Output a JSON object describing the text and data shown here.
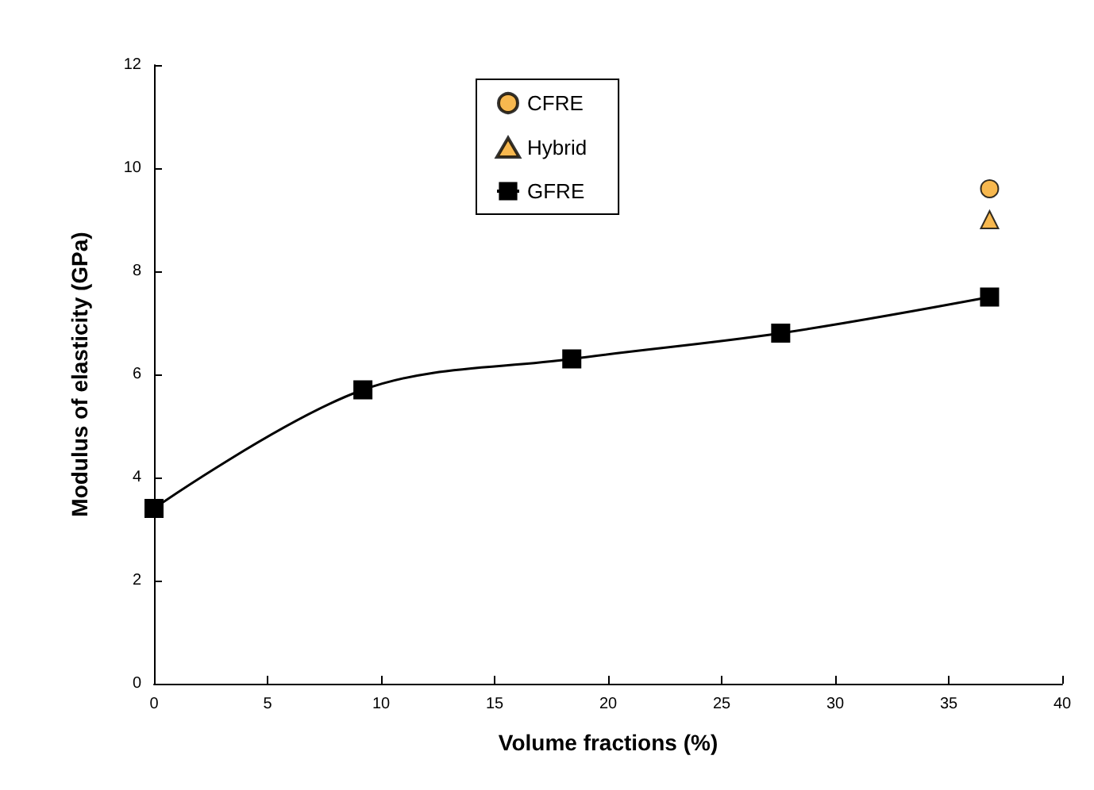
{
  "chart_data": {
    "type": "line",
    "xlabel": "Volume fractions (%)",
    "ylabel": "Modulus of elasticity (GPa)",
    "xlim": [
      0,
      40
    ],
    "xticks": [
      0,
      5,
      10,
      15,
      20,
      25,
      30,
      35,
      40
    ],
    "ylim": [
      0,
      12
    ],
    "yticks": [
      0,
      2,
      4,
      6,
      8,
      10,
      12
    ],
    "grid": false,
    "legend": "top",
    "series": [
      {
        "name": "CFRE",
        "type": "scatter",
        "marker": "circle",
        "color": "#f5a623",
        "x": [
          36.8
        ],
        "values": [
          9.6
        ]
      },
      {
        "name": "Hybrid",
        "type": "scatter",
        "marker": "triangle",
        "color": "#f5a623",
        "x": [
          36.8
        ],
        "values": [
          9.0
        ]
      },
      {
        "name": "GFRE",
        "marker": "square",
        "line_style": "solid",
        "color": "#000000",
        "x": [
          0,
          9.2,
          18.4,
          27.6,
          36.8
        ],
        "values": [
          3.4,
          5.7,
          6.3,
          6.8,
          7.5
        ]
      }
    ]
  }
}
